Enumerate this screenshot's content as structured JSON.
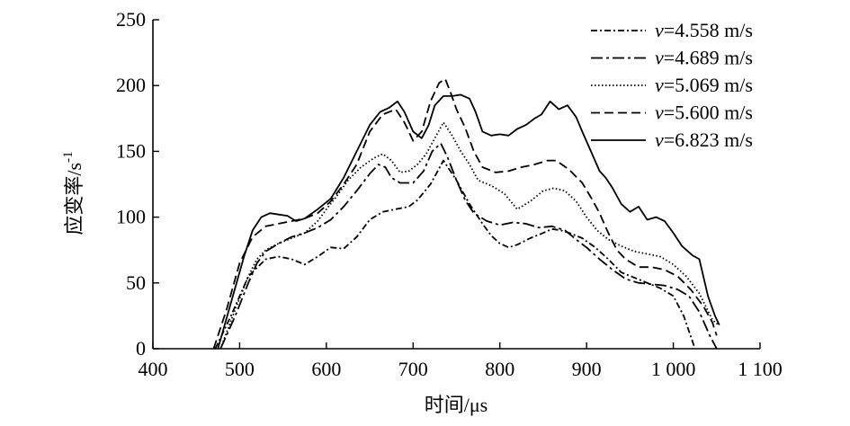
{
  "chart_data": {
    "type": "line",
    "xlabel": "时间/μs",
    "ylabel": "应变率/s",
    "ylabel_sup": "-1",
    "xlim": [
      400,
      1100
    ],
    "ylim": [
      0,
      250
    ],
    "xticks": [
      400,
      500,
      600,
      700,
      800,
      900,
      1000,
      1100
    ],
    "xtick_labels": [
      "400",
      "500",
      "600",
      "700",
      "800",
      "900",
      "1 000",
      "1 100"
    ],
    "yticks": [
      0,
      50,
      100,
      150,
      200,
      250
    ],
    "ytick_labels": [
      "0",
      "50",
      "100",
      "150",
      "200",
      "250"
    ],
    "legend_position": "top-right",
    "series": [
      {
        "name": "v=4.558 m/s",
        "name_var": "v",
        "name_rest": "=4.558 m/s",
        "style": "dash-dot",
        "points": [
          [
            472,
            0
          ],
          [
            490,
            25
          ],
          [
            510,
            55
          ],
          [
            530,
            68
          ],
          [
            545,
            70
          ],
          [
            560,
            68
          ],
          [
            575,
            64
          ],
          [
            590,
            70
          ],
          [
            605,
            77
          ],
          [
            620,
            76
          ],
          [
            635,
            85
          ],
          [
            650,
            98
          ],
          [
            665,
            104
          ],
          [
            680,
            106
          ],
          [
            695,
            108
          ],
          [
            705,
            113
          ],
          [
            720,
            125
          ],
          [
            735,
            143
          ],
          [
            750,
            128
          ],
          [
            765,
            110
          ],
          [
            780,
            95
          ],
          [
            790,
            86
          ],
          [
            800,
            80
          ],
          [
            810,
            77
          ],
          [
            820,
            79
          ],
          [
            835,
            84
          ],
          [
            850,
            88
          ],
          [
            860,
            91
          ],
          [
            870,
            90
          ],
          [
            880,
            88
          ],
          [
            895,
            84
          ],
          [
            910,
            77
          ],
          [
            925,
            68
          ],
          [
            940,
            58
          ],
          [
            955,
            54
          ],
          [
            970,
            50
          ],
          [
            985,
            46
          ],
          [
            1000,
            40
          ],
          [
            1012,
            25
          ],
          [
            1025,
            0
          ]
        ]
      },
      {
        "name": "v=4.689 m/s",
        "name_var": "v",
        "name_rest": "=4.689 m/s",
        "style": "long-dash-dot",
        "points": [
          [
            478,
            0
          ],
          [
            495,
            25
          ],
          [
            510,
            50
          ],
          [
            520,
            65
          ],
          [
            530,
            74
          ],
          [
            545,
            80
          ],
          [
            560,
            85
          ],
          [
            575,
            88
          ],
          [
            590,
            92
          ],
          [
            605,
            98
          ],
          [
            620,
            108
          ],
          [
            635,
            120
          ],
          [
            650,
            133
          ],
          [
            660,
            140
          ],
          [
            668,
            138
          ],
          [
            675,
            130
          ],
          [
            685,
            126
          ],
          [
            700,
            126
          ],
          [
            712,
            135
          ],
          [
            722,
            150
          ],
          [
            732,
            156
          ],
          [
            740,
            145
          ],
          [
            750,
            128
          ],
          [
            760,
            113
          ],
          [
            770,
            103
          ],
          [
            785,
            97
          ],
          [
            800,
            94
          ],
          [
            815,
            96
          ],
          [
            830,
            95
          ],
          [
            845,
            92
          ],
          [
            860,
            93
          ],
          [
            875,
            90
          ],
          [
            890,
            82
          ],
          [
            900,
            77
          ],
          [
            915,
            68
          ],
          [
            930,
            60
          ],
          [
            945,
            53
          ],
          [
            960,
            50
          ],
          [
            975,
            49
          ],
          [
            990,
            48
          ],
          [
            1005,
            45
          ],
          [
            1018,
            40
          ],
          [
            1030,
            28
          ],
          [
            1042,
            10
          ],
          [
            1050,
            0
          ]
        ]
      },
      {
        "name": "v=5.069 m/s",
        "name_var": "v",
        "name_rest": "=5.069 m/s",
        "style": "dotted",
        "points": [
          [
            478,
            0
          ],
          [
            495,
            30
          ],
          [
            510,
            55
          ],
          [
            520,
            68
          ],
          [
            530,
            75
          ],
          [
            545,
            80
          ],
          [
            560,
            84
          ],
          [
            575,
            88
          ],
          [
            590,
            97
          ],
          [
            600,
            106
          ],
          [
            612,
            116
          ],
          [
            625,
            128
          ],
          [
            640,
            138
          ],
          [
            655,
            145
          ],
          [
            665,
            148
          ],
          [
            675,
            143
          ],
          [
            685,
            134
          ],
          [
            695,
            135
          ],
          [
            705,
            140
          ],
          [
            715,
            148
          ],
          [
            725,
            160
          ],
          [
            735,
            172
          ],
          [
            745,
            162
          ],
          [
            755,
            150
          ],
          [
            765,
            140
          ],
          [
            775,
            128
          ],
          [
            790,
            124
          ],
          [
            805,
            118
          ],
          [
            820,
            106
          ],
          [
            835,
            112
          ],
          [
            850,
            120
          ],
          [
            862,
            122
          ],
          [
            875,
            120
          ],
          [
            888,
            112
          ],
          [
            900,
            100
          ],
          [
            912,
            90
          ],
          [
            925,
            83
          ],
          [
            940,
            78
          ],
          [
            955,
            74
          ],
          [
            970,
            72
          ],
          [
            985,
            70
          ],
          [
            1000,
            64
          ],
          [
            1015,
            55
          ],
          [
            1030,
            42
          ],
          [
            1045,
            22
          ],
          [
            1052,
            18
          ]
        ]
      },
      {
        "name": "v=5.600 m/s",
        "name_var": "v",
        "name_rest": "=5.600 m/s",
        "style": "dashed",
        "points": [
          [
            470,
            0
          ],
          [
            485,
            30
          ],
          [
            500,
            65
          ],
          [
            515,
            85
          ],
          [
            530,
            93
          ],
          [
            545,
            95
          ],
          [
            560,
            97
          ],
          [
            575,
            99
          ],
          [
            590,
            103
          ],
          [
            605,
            112
          ],
          [
            620,
            125
          ],
          [
            635,
            140
          ],
          [
            650,
            165
          ],
          [
            665,
            178
          ],
          [
            680,
            182
          ],
          [
            690,
            172
          ],
          [
            700,
            158
          ],
          [
            710,
            165
          ],
          [
            720,
            188
          ],
          [
            730,
            202
          ],
          [
            737,
            205
          ],
          [
            743,
            195
          ],
          [
            750,
            182
          ],
          [
            760,
            168
          ],
          [
            770,
            150
          ],
          [
            780,
            138
          ],
          [
            795,
            134
          ],
          [
            810,
            135
          ],
          [
            825,
            138
          ],
          [
            840,
            140
          ],
          [
            855,
            143
          ],
          [
            865,
            143
          ],
          [
            880,
            136
          ],
          [
            895,
            126
          ],
          [
            905,
            115
          ],
          [
            915,
            103
          ],
          [
            925,
            88
          ],
          [
            935,
            75
          ],
          [
            945,
            68
          ],
          [
            960,
            62
          ],
          [
            975,
            62
          ],
          [
            990,
            60
          ],
          [
            1005,
            55
          ],
          [
            1020,
            45
          ],
          [
            1035,
            32
          ],
          [
            1045,
            20
          ],
          [
            1050,
            10
          ]
        ]
      },
      {
        "name": "v=6.823 m/s",
        "name_var": "v",
        "name_rest": "=6.823 m/s",
        "style": "solid",
        "points": [
          [
            475,
            0
          ],
          [
            490,
            35
          ],
          [
            505,
            70
          ],
          [
            515,
            90
          ],
          [
            525,
            100
          ],
          [
            535,
            103
          ],
          [
            545,
            102
          ],
          [
            555,
            101
          ],
          [
            565,
            97
          ],
          [
            575,
            99
          ],
          [
            590,
            106
          ],
          [
            605,
            114
          ],
          [
            620,
            130
          ],
          [
            635,
            150
          ],
          [
            650,
            170
          ],
          [
            662,
            180
          ],
          [
            672,
            183
          ],
          [
            682,
            188
          ],
          [
            690,
            180
          ],
          [
            700,
            165
          ],
          [
            710,
            160
          ],
          [
            718,
            170
          ],
          [
            725,
            185
          ],
          [
            735,
            192
          ],
          [
            745,
            192
          ],
          [
            755,
            193
          ],
          [
            765,
            190
          ],
          [
            772,
            180
          ],
          [
            780,
            165
          ],
          [
            790,
            162
          ],
          [
            800,
            163
          ],
          [
            810,
            162
          ],
          [
            820,
            167
          ],
          [
            830,
            170
          ],
          [
            840,
            175
          ],
          [
            848,
            178
          ],
          [
            858,
            188
          ],
          [
            868,
            182
          ],
          [
            878,
            185
          ],
          [
            888,
            176
          ],
          [
            895,
            165
          ],
          [
            905,
            150
          ],
          [
            915,
            135
          ],
          [
            922,
            130
          ],
          [
            930,
            122
          ],
          [
            940,
            110
          ],
          [
            950,
            104
          ],
          [
            960,
            108
          ],
          [
            970,
            98
          ],
          [
            980,
            100
          ],
          [
            990,
            97
          ],
          [
            1000,
            88
          ],
          [
            1010,
            78
          ],
          [
            1022,
            71
          ],
          [
            1030,
            68
          ],
          [
            1040,
            40
          ],
          [
            1048,
            25
          ],
          [
            1053,
            18
          ]
        ]
      }
    ]
  }
}
